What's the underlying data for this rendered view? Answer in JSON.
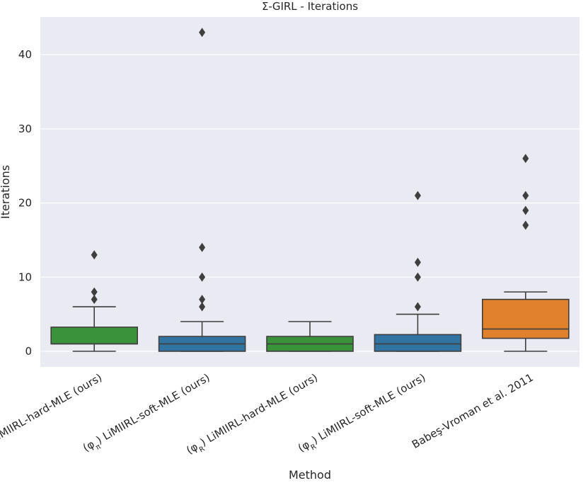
{
  "chart_data": {
    "type": "box",
    "title": "Σ-GIRL - Iterations",
    "xlabel": "Method",
    "ylabel": "Iterations",
    "ylim": [
      -2,
      45
    ],
    "yticks": [
      0,
      10,
      20,
      30,
      40
    ],
    "grid": true,
    "categories": [
      {
        "prefix": "(φ",
        "sub": "π",
        "suffix": ") LiMIIRL-hard-MLE (ours)",
        "color": "#3a923a"
      },
      {
        "prefix": "(φ",
        "sub": "π",
        "suffix": ") LiMIIRL-soft-MLE (ours)",
        "color": "#3274a1"
      },
      {
        "prefix": "(φ",
        "sub": "R",
        "suffix": ") LiMIIRL-hard-MLE (ours)",
        "color": "#3a923a"
      },
      {
        "prefix": "(φ",
        "sub": "R",
        "suffix": ") LiMIIRL-soft-MLE (ours)",
        "color": "#3274a1"
      },
      {
        "prefix": "Babeş-Vroman et al. 2011",
        "sub": "",
        "suffix": "",
        "color": "#e1812c"
      }
    ],
    "boxes": [
      {
        "whisker_low": 0,
        "q1": 1,
        "median": 1,
        "q3": 3.25,
        "whisker_high": 6,
        "outliers": [
          7,
          8,
          13
        ]
      },
      {
        "whisker_low": 0,
        "q1": 0,
        "median": 1,
        "q3": 2,
        "whisker_high": 4,
        "outliers": [
          6,
          7,
          10,
          14,
          43
        ]
      },
      {
        "whisker_low": 0,
        "q1": 0,
        "median": 1,
        "q3": 2,
        "whisker_high": 4,
        "outliers": []
      },
      {
        "whisker_low": 0,
        "q1": 0,
        "median": 1,
        "q3": 2.25,
        "whisker_high": 5,
        "outliers": [
          6,
          10,
          12,
          21
        ]
      },
      {
        "whisker_low": 0,
        "q1": 1.75,
        "median": 3,
        "q3": 7,
        "whisker_high": 8,
        "outliers": [
          17,
          19,
          21,
          26
        ]
      }
    ]
  }
}
